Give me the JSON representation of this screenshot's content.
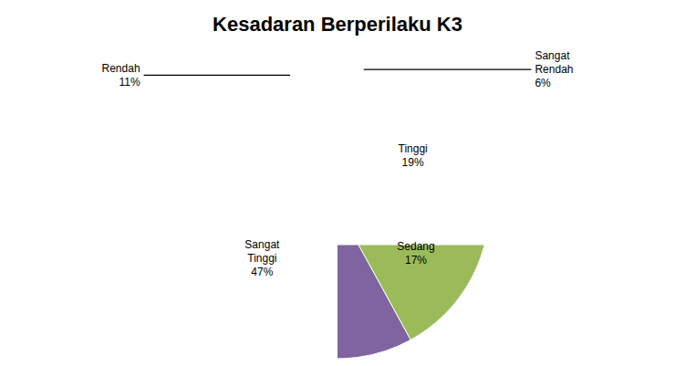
{
  "chart_data": {
    "type": "pie",
    "title": "Kesadaran Berperilaku K3",
    "categories": [
      "Sangat\nRendah",
      "Tinggi",
      "Sedang",
      "Sangat\nTinggi",
      "Rendah"
    ],
    "values": [
      6,
      19,
      17,
      47,
      11
    ],
    "value_labels": [
      "6%",
      "19%",
      "17%",
      "47%",
      "11%"
    ],
    "colors": [
      "#4472C4",
      "#C0504D",
      "#9BBB59",
      "#8064A2",
      "#4BACC6"
    ],
    "data_labels": true
  }
}
